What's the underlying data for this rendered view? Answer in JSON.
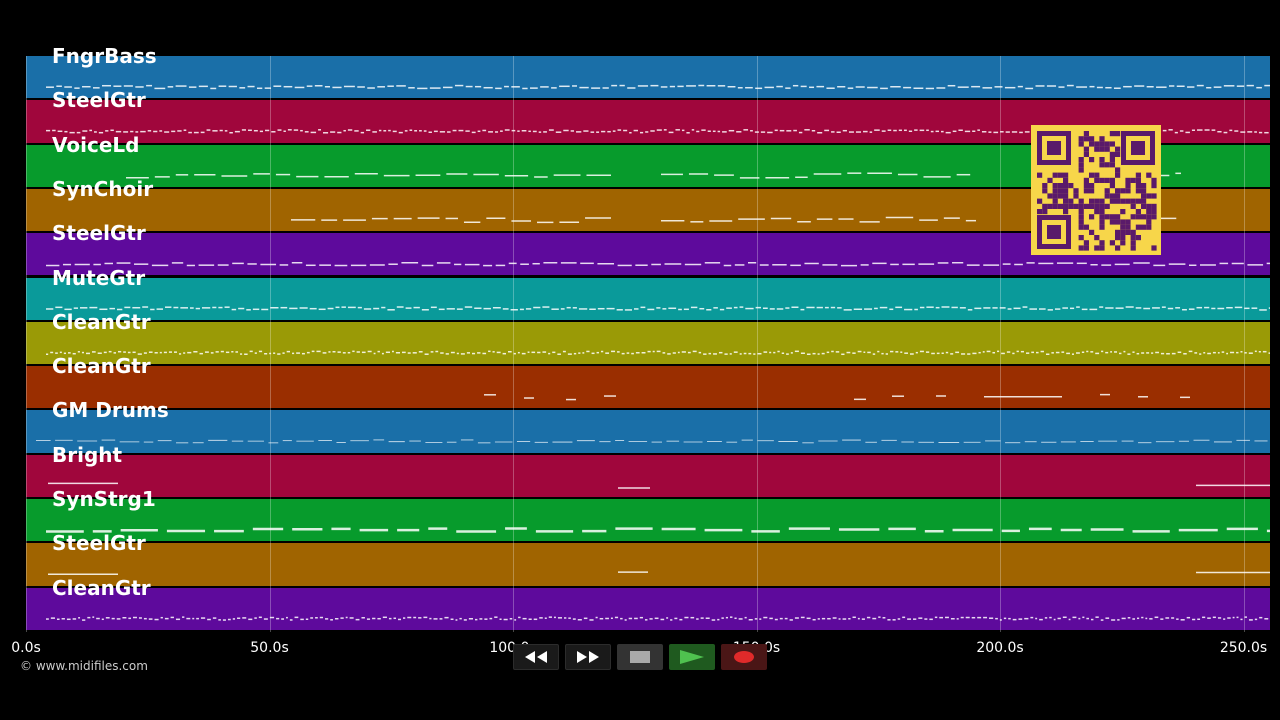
{
  "tracks": [
    {
      "label": "FngrBass",
      "color": "#1a6fa8"
    },
    {
      "label": "SteelGtr",
      "color": "#a0063c"
    },
    {
      "label": "VoiceLd",
      "color": "#079b2c"
    },
    {
      "label": "SynChoir",
      "color": "#a06400"
    },
    {
      "label": "SteelGtr",
      "color": "#5e0a9c"
    },
    {
      "label": "MuteGtr",
      "color": "#0a9a9a"
    },
    {
      "label": "CleanGtr",
      "color": "#9a9a06"
    },
    {
      "label": "CleanGtr",
      "color": "#9a2e00"
    },
    {
      "label": "GM Drums",
      "color": "#1a6fa8"
    },
    {
      "label": "Bright",
      "color": "#a0063c"
    },
    {
      "label": "SynStrg1",
      "color": "#079b2c"
    },
    {
      "label": "SteelGtr",
      "color": "#a06400"
    },
    {
      "label": "CleanGtr",
      "color": "#5e0a9c"
    }
  ],
  "time_axis": {
    "ticks": [
      "0.0s",
      "50.0s",
      "100.0s",
      "150.0s",
      "200.0s",
      "250.0s"
    ]
  },
  "copyright": "© www.midifiles.com",
  "transport": {
    "rewind_icon": "rewind-icon",
    "forward_icon": "fast-forward-icon",
    "stop_icon": "stop-icon",
    "play_icon": "play-icon",
    "record_icon": "record-icon"
  },
  "qr_code": "qr-code"
}
